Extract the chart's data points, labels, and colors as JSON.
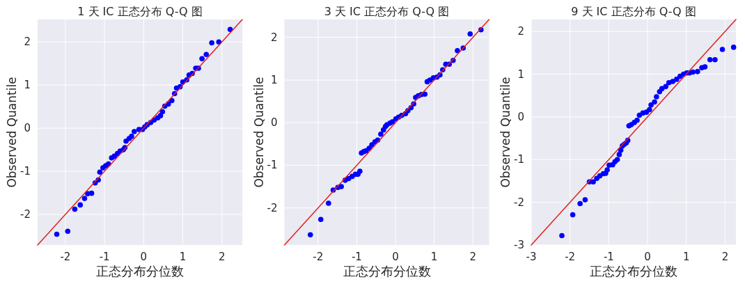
{
  "chart_data": [
    {
      "type": "scatter",
      "title": "1 天 IC 正态分布 Q-Q 图",
      "xlabel": "正态分布分位数",
      "ylabel": "Observed Quantile",
      "xlim": [
        -2.71,
        2.52
      ],
      "ylim": [
        -2.71,
        2.52
      ],
      "xticks": [
        -2,
        -1,
        0,
        1,
        2
      ],
      "yticks": [
        -2,
        -1,
        0,
        1,
        2
      ],
      "grid": true,
      "series": [
        {
          "type": "scatter",
          "marker": "circle",
          "color": "#0000ff",
          "x": [
            -2.22,
            -1.94,
            -1.76,
            -1.62,
            -1.51,
            -1.43,
            -1.33,
            -1.24,
            -1.16,
            -1.12,
            -1.04,
            -0.97,
            -0.9,
            -0.82,
            -0.75,
            -0.67,
            -0.6,
            -0.52,
            -0.48,
            -0.45,
            -0.37,
            -0.31,
            -0.24,
            -0.12,
            -0.03,
            0.03,
            0.09,
            0.18,
            0.27,
            0.36,
            0.43,
            0.48,
            0.54,
            0.63,
            0.72,
            0.79,
            0.84,
            0.93,
            1.0,
            1.1,
            1.16,
            1.24,
            1.33,
            1.4,
            1.49,
            1.6,
            1.74,
            1.92,
            2.21
          ],
          "values": [
            -2.46,
            -2.39,
            -1.88,
            -1.78,
            -1.63,
            -1.52,
            -1.51,
            -1.27,
            -1.2,
            -1.02,
            -0.92,
            -0.87,
            -0.83,
            -0.69,
            -0.65,
            -0.59,
            -0.53,
            -0.5,
            -0.45,
            -0.3,
            -0.24,
            -0.19,
            -0.08,
            -0.03,
            -0.03,
            0.03,
            0.08,
            0.13,
            0.19,
            0.24,
            0.29,
            0.38,
            0.51,
            0.56,
            0.64,
            0.8,
            0.93,
            0.96,
            1.07,
            1.12,
            1.23,
            1.27,
            1.39,
            1.39,
            1.61,
            1.71,
            1.98,
            2.0,
            2.29
          ]
        },
        {
          "type": "line",
          "line_style": "solid",
          "marker": "none",
          "color": "#e0201e",
          "x": [
            -2.71,
            2.52
          ],
          "values": [
            -2.71,
            2.52
          ]
        }
      ]
    },
    {
      "type": "scatter",
      "title": "3 天 IC 正态分布 Q-Q 图",
      "xlabel": "正态分布分位数",
      "ylabel": "Observed Quantile",
      "xlim": [
        -2.87,
        2.42
      ],
      "ylim": [
        -2.87,
        2.42
      ],
      "xticks": [
        -2,
        -1,
        0,
        1,
        2
      ],
      "yticks": [
        -2,
        -1,
        0,
        1,
        2
      ],
      "grid": true,
      "series": [
        {
          "type": "scatter",
          "marker": "circle",
          "color": "#0000ff",
          "x": [
            -2.2,
            -1.93,
            -1.73,
            -1.61,
            -1.49,
            -1.4,
            -1.3,
            -1.21,
            -1.12,
            -1.03,
            -0.97,
            -0.92,
            -0.88,
            -0.82,
            -0.76,
            -0.68,
            -0.61,
            -0.53,
            -0.46,
            -0.38,
            -0.31,
            -0.26,
            -0.22,
            -0.14,
            -0.08,
            0.01,
            0.08,
            0.16,
            0.26,
            0.32,
            0.4,
            0.47,
            0.52,
            0.59,
            0.67,
            0.76,
            0.82,
            0.89,
            0.98,
            1.07,
            1.15,
            1.22,
            1.3,
            1.39,
            1.49,
            1.6,
            1.75,
            1.93,
            2.21
          ],
          "values": [
            -2.63,
            -2.27,
            -1.89,
            -1.58,
            -1.52,
            -1.5,
            -1.35,
            -1.31,
            -1.26,
            -1.21,
            -1.21,
            -1.14,
            -0.71,
            -0.68,
            -0.66,
            -0.6,
            -0.52,
            -0.45,
            -0.41,
            -0.27,
            -0.17,
            -0.09,
            -0.05,
            -0.01,
            0.02,
            0.09,
            0.13,
            0.17,
            0.21,
            0.28,
            0.35,
            0.44,
            0.59,
            0.63,
            0.66,
            0.67,
            0.96,
            1.0,
            1.05,
            1.07,
            1.12,
            1.24,
            1.37,
            1.37,
            1.46,
            1.69,
            1.75,
            2.08,
            2.18
          ]
        },
        {
          "type": "line",
          "line_style": "solid",
          "marker": "none",
          "color": "#e0201e",
          "x": [
            -2.87,
            2.42
          ],
          "values": [
            -2.87,
            2.42
          ]
        }
      ]
    },
    {
      "type": "scatter",
      "title": "9 天 IC 正态分布 Q-Q 图",
      "xlabel": "正态分布分位数",
      "ylabel": "Observed Quantile",
      "xlim": [
        -3,
        2.28
      ],
      "ylim": [
        -3,
        2.28
      ],
      "xticks": [
        -3,
        -2,
        -1,
        0,
        1,
        2
      ],
      "yticks": [
        -3,
        -2,
        -1,
        0,
        1,
        2
      ],
      "grid": true,
      "series": [
        {
          "type": "scatter",
          "marker": "circle",
          "color": "#0000ff",
          "x": [
            -2.21,
            -1.93,
            -1.74,
            -1.61,
            -1.5,
            -1.4,
            -1.31,
            -1.23,
            -1.14,
            -1.08,
            -1.04,
            -0.99,
            -0.9,
            -0.84,
            -0.78,
            -0.73,
            -0.69,
            -0.65,
            -0.6,
            -0.55,
            -0.51,
            -0.48,
            -0.42,
            -0.34,
            -0.27,
            -0.21,
            -0.12,
            -0.03,
            0.05,
            0.09,
            0.18,
            0.23,
            0.31,
            0.37,
            0.47,
            0.55,
            0.65,
            0.75,
            0.84,
            0.93,
            1.01,
            1.08,
            1.17,
            1.29,
            1.4,
            1.48,
            1.61,
            1.74,
            1.93,
            2.22
          ],
          "values": [
            -2.78,
            -2.29,
            -2.03,
            -1.94,
            -1.52,
            -1.52,
            -1.44,
            -1.38,
            -1.33,
            -1.32,
            -1.24,
            -1.13,
            -1.12,
            -1.05,
            -1.0,
            -0.88,
            -0.78,
            -0.68,
            -0.64,
            -0.61,
            -0.55,
            -0.21,
            -0.18,
            -0.13,
            -0.08,
            0.04,
            0.09,
            0.11,
            0.17,
            0.28,
            0.35,
            0.47,
            0.59,
            0.66,
            0.71,
            0.8,
            0.83,
            0.88,
            0.95,
            1.0,
            1.03,
            1.03,
            1.05,
            1.06,
            1.15,
            1.17,
            1.34,
            1.34,
            1.58,
            1.63
          ]
        },
        {
          "type": "line",
          "line_style": "solid",
          "marker": "none",
          "color": "#e0201e",
          "x": [
            -3,
            2.28
          ],
          "values": [
            -3,
            2.28
          ]
        }
      ]
    }
  ]
}
